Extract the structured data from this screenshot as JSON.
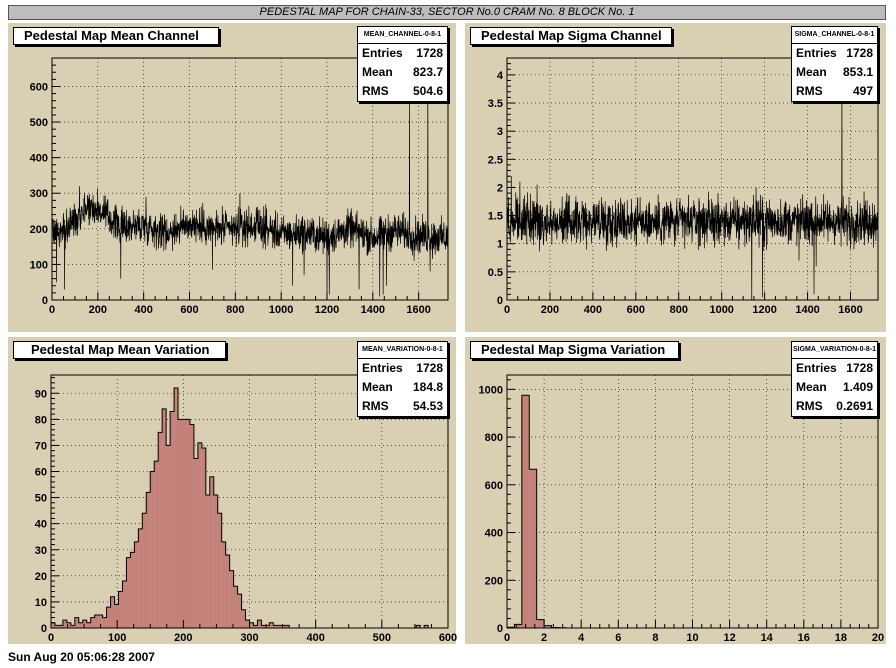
{
  "page_title": "PEDESTAL MAP FOR CHAIN-33, SECTOR No.0 CRAM No. 8 BLOCK No. 1",
  "footer_text": "Sun Aug 20 05:06:28 2007",
  "colors": {
    "pad_bg": "#d9d0b3",
    "hist_fill": "#c4817a",
    "line": "#000000"
  },
  "chart_data": [
    {
      "id": "mean_channel",
      "type": "line",
      "title": "Pedestal Map Mean Channel",
      "stats": {
        "name": "MEAN_CHANNEL-0-8-1",
        "entries": "1728",
        "mean": "823.7",
        "rms": "504.6"
      },
      "stats_labels": {
        "entries": "Entries",
        "mean": "Mean",
        "rms": "RMS"
      },
      "xlim": [
        0,
        1728
      ],
      "ylim": [
        0,
        680
      ],
      "xticks": [
        "0",
        "200",
        "400",
        "600",
        "800",
        "1000",
        "1200",
        "1400",
        "1600"
      ],
      "yticks": [
        "0",
        "100",
        "200",
        "300",
        "400",
        "500",
        "600"
      ],
      "grid": true,
      "x_range": [
        0,
        1728
      ],
      "base_profile": [
        [
          0,
          200
        ],
        [
          50,
          190
        ],
        [
          100,
          230
        ],
        [
          150,
          265
        ],
        [
          200,
          255
        ],
        [
          300,
          205
        ],
        [
          400,
          210
        ],
        [
          500,
          190
        ],
        [
          600,
          215
        ],
        [
          700,
          200
        ],
        [
          800,
          200
        ],
        [
          900,
          210
        ],
        [
          1000,
          185
        ],
        [
          1100,
          190
        ],
        [
          1200,
          175
        ],
        [
          1300,
          200
        ],
        [
          1400,
          175
        ],
        [
          1500,
          195
        ],
        [
          1600,
          180
        ],
        [
          1728,
          175
        ]
      ],
      "noise": 35,
      "spikes": [
        [
          20,
          50
        ],
        [
          30,
          170
        ],
        [
          55,
          30
        ],
        [
          120,
          320
        ],
        [
          300,
          60
        ],
        [
          410,
          290
        ],
        [
          700,
          85
        ],
        [
          820,
          300
        ],
        [
          1050,
          40
        ],
        [
          1100,
          70
        ],
        [
          1200,
          5
        ],
        [
          1210,
          15
        ],
        [
          1340,
          30
        ],
        [
          1430,
          10
        ],
        [
          1445,
          15
        ],
        [
          1460,
          40
        ],
        [
          1560,
          570
        ],
        [
          1580,
          110
        ],
        [
          1640,
          645
        ],
        [
          1650,
          80
        ],
        [
          1660,
          115
        ]
      ]
    },
    {
      "id": "sigma_channel",
      "type": "line",
      "title": "Pedestal Map Sigma Channel",
      "stats": {
        "name": "SIGMA_CHANNEL-0-8-1",
        "entries": "1728",
        "mean": "853.1",
        "rms": "497"
      },
      "stats_labels": {
        "entries": "Entries",
        "mean": "Mean",
        "rms": "RMS"
      },
      "xlim": [
        0,
        1728
      ],
      "ylim": [
        0,
        4.3
      ],
      "xticks": [
        "0",
        "200",
        "400",
        "600",
        "800",
        "1000",
        "1200",
        "1400",
        "1600"
      ],
      "yticks": [
        "0",
        "0.5",
        "1",
        "1.5",
        "2",
        "2.5",
        "3",
        "3.5",
        "4"
      ],
      "grid": true,
      "x_range": [
        0,
        1728
      ],
      "base_profile": [
        [
          0,
          1.4
        ],
        [
          1728,
          1.4
        ]
      ],
      "noise": 0.28,
      "spikes": [
        [
          20,
          2.2
        ],
        [
          60,
          2.1
        ],
        [
          140,
          2.05
        ],
        [
          780,
          0.95
        ],
        [
          1080,
          0.9
        ],
        [
          1140,
          0.0
        ],
        [
          1160,
          2.0
        ],
        [
          1190,
          0.05
        ],
        [
          1200,
          0.95
        ],
        [
          1360,
          0.7
        ],
        [
          1430,
          0.1
        ],
        [
          1440,
          0.6
        ],
        [
          1560,
          4.1
        ],
        [
          1600,
          0.9
        ]
      ]
    },
    {
      "id": "mean_variation",
      "type": "bar",
      "title": "Pedestal Map Mean Variation",
      "stats": {
        "name": "MEAN_VARIATION-0-8-1",
        "entries": "1728",
        "mean": "184.8",
        "rms": "54.53"
      },
      "stats_labels": {
        "entries": "Entries",
        "mean": "Mean",
        "rms": "RMS"
      },
      "xlim": [
        0,
        600
      ],
      "ylim": [
        0,
        97
      ],
      "xticks": [
        "0",
        "100",
        "200",
        "300",
        "400",
        "500",
        "600"
      ],
      "yticks": [
        "0",
        "10",
        "20",
        "30",
        "40",
        "50",
        "60",
        "70",
        "80",
        "90"
      ],
      "grid": true,
      "bin_start": 0,
      "bin_width": 6,
      "values": [
        2,
        1,
        1,
        3,
        2,
        1,
        4,
        2,
        3,
        2,
        4,
        5,
        5,
        4,
        8,
        12,
        9,
        14,
        18,
        27,
        29,
        33,
        38,
        44,
        52,
        60,
        64,
        75,
        84,
        70,
        83,
        92,
        80,
        80,
        80,
        78,
        65,
        71,
        69,
        51,
        58,
        51,
        44,
        33,
        28,
        22,
        16,
        13,
        7,
        3,
        2,
        1,
        3,
        1,
        1,
        2,
        1,
        1,
        1,
        1,
        0,
        0,
        0,
        0,
        0,
        0,
        0,
        0,
        0,
        0,
        0,
        0,
        0,
        0,
        0,
        0,
        0,
        0,
        0,
        0,
        0,
        0,
        0,
        0,
        0,
        0,
        0,
        0,
        0,
        0,
        0,
        0,
        1,
        0,
        1,
        0,
        0,
        0,
        0,
        0
      ]
    },
    {
      "id": "sigma_variation",
      "type": "bar",
      "title": "Pedestal Map Sigma Variation",
      "stats": {
        "name": "SIGMA_VARIATION-0-8-1",
        "entries": "1728",
        "mean": "1.409",
        "rms": "0.2691"
      },
      "stats_labels": {
        "entries": "Entries",
        "mean": "Mean",
        "rms": "RMS"
      },
      "xlim": [
        0,
        20
      ],
      "ylim": [
        0,
        1060
      ],
      "xticks": [
        "0",
        "2",
        "4",
        "6",
        "8",
        "10",
        "12",
        "14",
        "16",
        "18",
        "20"
      ],
      "yticks": [
        "0",
        "200",
        "400",
        "600",
        "800",
        "1000"
      ],
      "grid": true,
      "bin_start": 0,
      "bin_width": 0.4,
      "values": [
        3,
        15,
        975,
        665,
        35,
        10,
        2,
        1
      ]
    }
  ]
}
